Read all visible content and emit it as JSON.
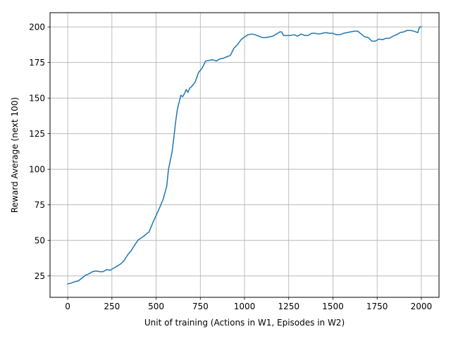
{
  "chart_data": {
    "type": "line",
    "title": "",
    "xlabel": "Unit of training (Actions in W1, Episodes in W2)",
    "ylabel": "Reward Average (next 100)",
    "xlim": [
      -100,
      2100
    ],
    "ylim": [
      10,
      210
    ],
    "xticks": [
      0,
      250,
      500,
      750,
      1000,
      1250,
      1500,
      1750,
      2000
    ],
    "yticks": [
      25,
      50,
      75,
      100,
      125,
      150,
      175,
      200
    ],
    "grid": true,
    "legend": "none",
    "colors": {
      "line": "#1f77b4",
      "grid": "#b0b0b0",
      "axes": "#000000"
    },
    "series": [
      {
        "x": [
          0,
          20,
          40,
          60,
          80,
          100,
          120,
          140,
          160,
          180,
          200,
          220,
          240,
          260,
          280,
          300,
          320,
          340,
          360,
          380,
          400,
          420,
          440,
          460,
          480,
          500,
          520,
          540,
          560,
          570,
          580,
          590,
          600,
          610,
          620,
          630,
          640,
          650,
          660,
          670,
          680,
          690,
          700,
          720,
          740,
          760,
          780,
          800,
          820,
          840,
          860,
          880,
          900,
          920,
          940,
          960,
          980,
          1000,
          1020,
          1040,
          1060,
          1080,
          1100,
          1120,
          1140,
          1160,
          1180,
          1200,
          1210,
          1220,
          1240,
          1260,
          1280,
          1300,
          1320,
          1340,
          1360,
          1380,
          1400,
          1420,
          1440,
          1460,
          1480,
          1500,
          1520,
          1540,
          1560,
          1580,
          1600,
          1620,
          1640,
          1660,
          1680,
          1700,
          1720,
          1740,
          1760,
          1780,
          1800,
          1820,
          1840,
          1860,
          1880,
          1900,
          1920,
          1940,
          1960,
          1980,
          1990,
          2000
        ],
        "values": [
          19.5,
          20,
          21,
          21.5,
          23.5,
          25.5,
          26.5,
          28,
          28.5,
          28,
          28,
          29.5,
          29,
          30.5,
          32,
          33.5,
          36,
          40,
          43,
          47,
          50.5,
          52,
          54,
          56,
          62,
          67.5,
          73,
          79,
          88,
          100,
          106,
          112,
          122,
          133,
          142,
          147,
          152,
          151,
          153,
          156,
          154,
          157,
          158,
          161,
          168,
          171,
          176,
          176.5,
          177,
          176,
          177.5,
          178,
          179,
          180,
          185,
          187.5,
          191,
          193,
          194.5,
          195,
          194.5,
          193.5,
          192.5,
          192.5,
          193,
          193.5,
          195,
          196.5,
          196.5,
          194,
          194,
          194,
          194.5,
          193.5,
          195,
          194,
          194,
          195.5,
          195.5,
          195,
          195.5,
          196,
          195.5,
          195.5,
          194.5,
          194.5,
          195.5,
          196,
          196.5,
          197,
          197,
          195,
          193,
          192.5,
          190,
          190,
          191.5,
          191,
          192,
          192,
          193.5,
          194.5,
          196,
          196.5,
          197.5,
          197.5,
          197,
          196,
          200,
          200
        ]
      }
    ]
  }
}
